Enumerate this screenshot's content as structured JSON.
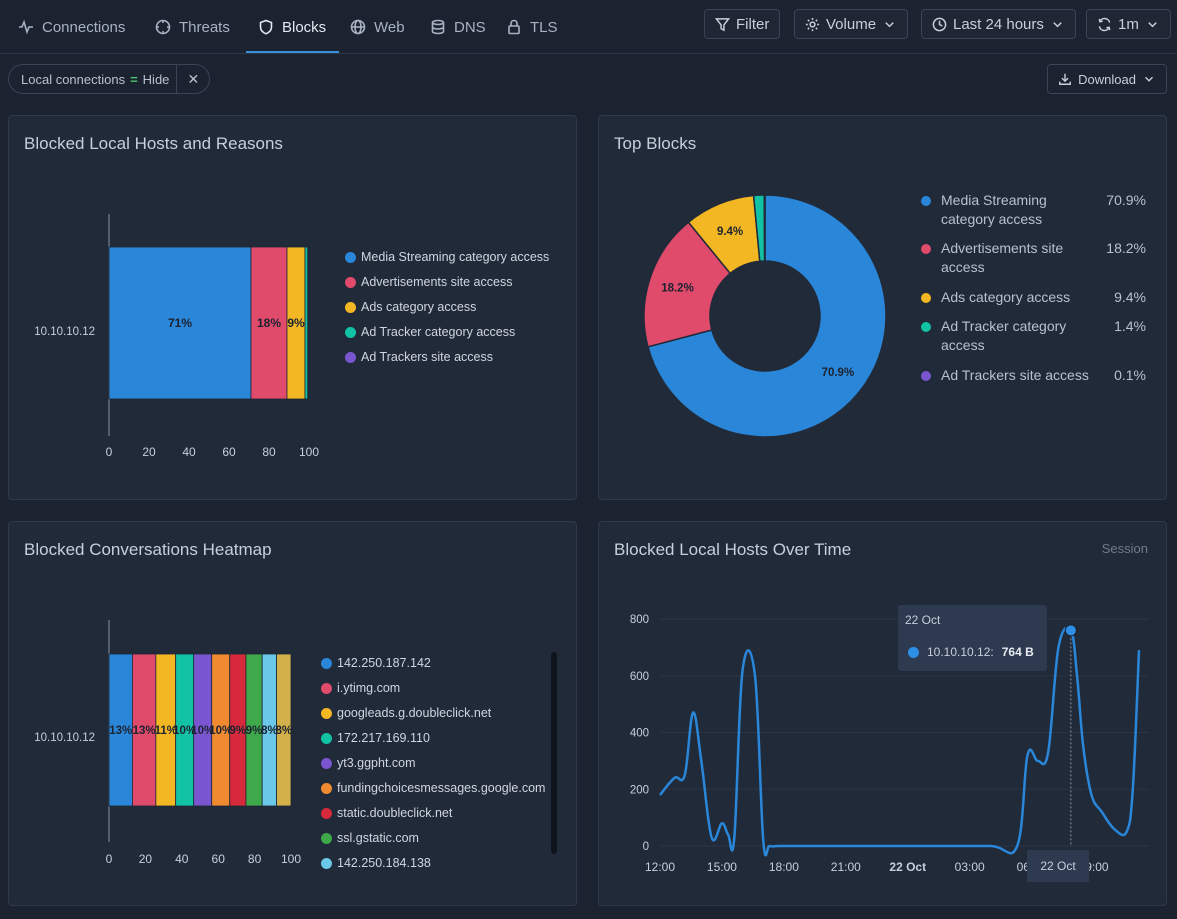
{
  "nav": {
    "tabs": [
      {
        "label": "Connections",
        "icon": "activity-icon"
      },
      {
        "label": "Threats",
        "icon": "crosshair-icon"
      },
      {
        "label": "Blocks",
        "icon": "shield-icon",
        "active": true
      },
      {
        "label": "Web",
        "icon": "globe-icon"
      },
      {
        "label": "DNS",
        "icon": "database-icon"
      },
      {
        "label": "TLS",
        "icon": "lock-icon"
      }
    ],
    "filter_label": "Filter",
    "volume_label": "Volume",
    "time_label": "Last 24 hours",
    "refresh_label": "1m"
  },
  "filter_chip": {
    "key": "Local connections",
    "op": "=",
    "value": "Hide",
    "close": "✕"
  },
  "download_label": "Download",
  "colors": {
    "blue": "#2a86d9",
    "red": "#e04a6b",
    "yellow": "#f3b723",
    "teal": "#12c2a5",
    "purple": "#7a55d0",
    "orange": "#f08a30",
    "crimson": "#d62a3c",
    "green": "#3ea84b",
    "cyan": "#6ac9e8",
    "gold": "#d2b04a",
    "accent": "#3b8fe0"
  },
  "panels": {
    "blocked_hosts": {
      "title": "Blocked Local Hosts and Reasons",
      "legend": [
        "Media Streaming category access",
        "Advertisements site access",
        "Ads category access",
        "Ad Tracker category access",
        "Ad Trackers site access"
      ]
    },
    "top_blocks": {
      "title": "Top Blocks",
      "legend": [
        {
          "label": "Media Streaming category access",
          "pct": "70.9%"
        },
        {
          "label": "Advertisements site access",
          "pct": "18.2%"
        },
        {
          "label": "Ads category access",
          "pct": "9.4%"
        },
        {
          "label": "Ad Tracker category access",
          "pct": "1.4%"
        },
        {
          "label": "Ad Trackers site access",
          "pct": "0.1%"
        }
      ]
    },
    "heatmap": {
      "title": "Blocked Conversations Heatmap",
      "legend": [
        "142.250.187.142",
        "i.ytimg.com",
        "googleads.g.doubleclick.net",
        "172.217.169.110",
        "yt3.ggpht.com",
        "fundingchoicesmessages.google.com",
        "static.doubleclick.net",
        "ssl.gstatic.com",
        "142.250.184.138"
      ]
    },
    "over_time": {
      "title": "Blocked Local Hosts Over Time",
      "subtitle": "Session",
      "tooltip": {
        "date": "22 Oct",
        "host": "10.10.10.12:",
        "value": "764 B"
      },
      "hover_x_label": "22 Oct"
    }
  },
  "chart_data": [
    {
      "type": "bar",
      "orientation": "horizontal",
      "stacked": true,
      "categories": [
        "10.10.10.12"
      ],
      "series": [
        {
          "name": "Media Streaming category access",
          "values": [
            71
          ],
          "label": "71%"
        },
        {
          "name": "Advertisements site access",
          "values": [
            18
          ],
          "label": "18%"
        },
        {
          "name": "Ads category access",
          "values": [
            9
          ],
          "label": "9%"
        },
        {
          "name": "Ad Tracker category access",
          "values": [
            1.4
          ],
          "label": ""
        },
        {
          "name": "Ad Trackers site access",
          "values": [
            0.1
          ],
          "label": ""
        }
      ],
      "xlim": [
        0,
        100
      ],
      "xticks": [
        "0",
        "20",
        "40",
        "60",
        "80",
        "100"
      ],
      "legend": "right"
    },
    {
      "type": "pie",
      "donut": true,
      "slices": [
        {
          "name": "Media Streaming category access",
          "value": 70.9,
          "label": "70.9%"
        },
        {
          "name": "Advertisements site access",
          "value": 18.2,
          "label": "18.2%"
        },
        {
          "name": "Ads category access",
          "value": 9.4,
          "label": "9.4%"
        },
        {
          "name": "Ad Tracker category access",
          "value": 1.4,
          "label": ""
        },
        {
          "name": "Ad Trackers site access",
          "value": 0.1,
          "label": ""
        }
      ],
      "legend": "right"
    },
    {
      "type": "bar",
      "orientation": "horizontal",
      "stacked": true,
      "categories": [
        "10.10.10.12"
      ],
      "series": [
        {
          "name": "142.250.187.142",
          "values": [
            13
          ],
          "label": "13%"
        },
        {
          "name": "i.ytimg.com",
          "values": [
            13
          ],
          "label": "13%"
        },
        {
          "name": "googleads.g.doubleclick.net",
          "values": [
            11
          ],
          "label": "11%"
        },
        {
          "name": "172.217.169.110",
          "values": [
            10
          ],
          "label": "10%"
        },
        {
          "name": "yt3.ggpht.com",
          "values": [
            10
          ],
          "label": "10%"
        },
        {
          "name": "fundingchoicesmessages.google.com",
          "values": [
            10
          ],
          "label": "10%"
        },
        {
          "name": "static.doubleclick.net",
          "values": [
            9
          ],
          "label": "9%"
        },
        {
          "name": "ssl.gstatic.com",
          "values": [
            9
          ],
          "label": "9%"
        },
        {
          "name": "142.250.184.138",
          "values": [
            8
          ],
          "label": "8%"
        },
        {
          "name": "",
          "values": [
            8
          ],
          "label": "8%"
        }
      ],
      "xlim": [
        0,
        100
      ],
      "xticks": [
        "0",
        "20",
        "40",
        "60",
        "80",
        "100"
      ],
      "legend": "right"
    },
    {
      "type": "line",
      "smooth": true,
      "series": [
        {
          "name": "10.10.10.12",
          "x": [
            0,
            0.7,
            1.2,
            1.6,
            2.0,
            2.5,
            3.0,
            3.3,
            3.6,
            4.0,
            4.6,
            5.0,
            5.3,
            5.7,
            6.0,
            6.5,
            7.0,
            8.0,
            10.0,
            13.0,
            16.0,
            17.3,
            17.8,
            18.3,
            18.8,
            19.3,
            19.9,
            20.2,
            20.5,
            20.9,
            21.4,
            22.0,
            22.6,
            22.9,
            23.2
          ],
          "y": [
            180,
            240,
            250,
            470,
            300,
            30,
            80,
            40,
            30,
            620,
            600,
            20,
            0,
            0,
            0,
            0,
            0,
            0,
            0,
            0,
            0,
            0,
            320,
            300,
            330,
            700,
            760,
            600,
            350,
            180,
            120,
            60,
            50,
            200,
            690
          ]
        }
      ],
      "xticks": [
        "12:00",
        "15:00",
        "18:00",
        "21:00",
        "22 Oct",
        "03:00",
        "06:00",
        "09:00"
      ],
      "yticks": [
        "0",
        "200",
        "400",
        "600",
        "800"
      ],
      "ylim": [
        0,
        850
      ],
      "grid": true
    }
  ]
}
